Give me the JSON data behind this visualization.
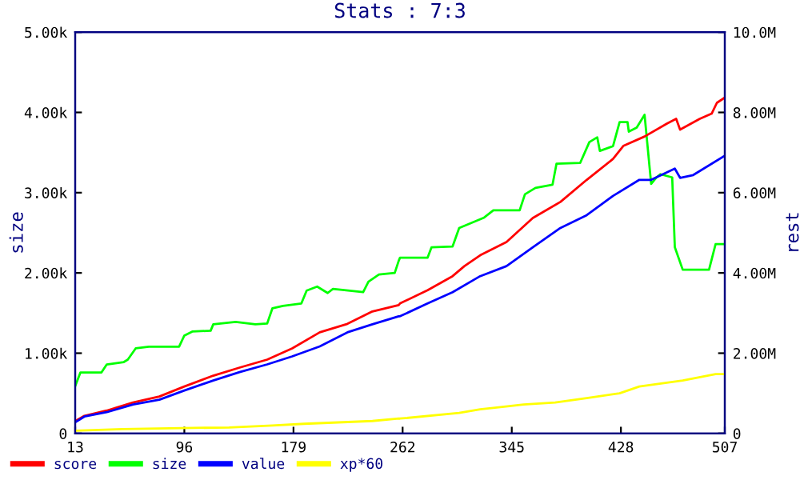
{
  "chart_data": {
    "type": "line",
    "title": "Stats : 7:3",
    "ylabel": "size",
    "y2label": "rest",
    "xlim": [
      13,
      507
    ],
    "xticks": [
      13,
      96,
      179,
      262,
      345,
      428,
      507
    ],
    "ylim": [
      0,
      5000
    ],
    "yticks": [
      0,
      {
        "value": 1000,
        "label": "1.00k"
      },
      {
        "value": 2000,
        "label": "2.00k"
      },
      {
        "value": 3000,
        "label": "3.00k"
      },
      {
        "value": 4000,
        "label": "4.00k"
      },
      {
        "value": 5000,
        "label": "5.00k"
      }
    ],
    "y2lim": [
      0,
      10000000
    ],
    "y2ticks": [
      0,
      {
        "value": 2000000,
        "label": "2.00M"
      },
      {
        "value": 4000000,
        "label": "4.00M"
      },
      {
        "value": 6000000,
        "label": "6.00M"
      },
      {
        "value": 8000000,
        "label": "8.00M"
      },
      {
        "value": 10000000,
        "label": "10.0M"
      }
    ],
    "legend": "bottom",
    "grid": false,
    "series": [
      {
        "name": "score",
        "color": "#ff0000",
        "axis": "y2",
        "x": [
          13,
          20,
          37,
          57,
          77,
          96,
          118,
          138,
          159,
          178,
          199,
          220,
          239,
          259,
          260,
          281,
          300,
          309,
          321,
          341,
          361,
          382,
          402,
          422,
          430,
          446,
          463,
          470,
          473,
          488,
          497,
          501,
          507
        ],
        "values": [
          310000,
          440000,
          570000,
          770000,
          920000,
          1170000,
          1440000,
          1640000,
          1840000,
          2120000,
          2520000,
          2730000,
          3040000,
          3200000,
          3240000,
          3570000,
          3920000,
          4170000,
          4440000,
          4770000,
          5370000,
          5770000,
          6320000,
          6840000,
          7170000,
          7400000,
          7720000,
          7840000,
          7570000,
          7840000,
          7970000,
          8240000,
          8370000
        ]
      },
      {
        "name": "size",
        "color": "#00ff00",
        "x": [
          13,
          17,
          33,
          37,
          50,
          53,
          59,
          69,
          92,
          96,
          102,
          116,
          118,
          135,
          150,
          159,
          163,
          171,
          185,
          189,
          197,
          205,
          209,
          232,
          236,
          244,
          256,
          259,
          260,
          281,
          284,
          300,
          305,
          324,
          331,
          351,
          355,
          363,
          376,
          379,
          397,
          404,
          410,
          412,
          422,
          427,
          433,
          434,
          440,
          446,
          451,
          455,
          458,
          467,
          469,
          475,
          495,
          500,
          507
        ],
        "values": [
          590,
          760,
          760,
          860,
          890,
          920,
          1060,
          1080,
          1080,
          1220,
          1270,
          1280,
          1360,
          1390,
          1360,
          1370,
          1560,
          1590,
          1620,
          1780,
          1830,
          1750,
          1800,
          1760,
          1890,
          1980,
          2000,
          2150,
          2190,
          2190,
          2320,
          2330,
          2560,
          2690,
          2780,
          2780,
          2980,
          3060,
          3100,
          3360,
          3370,
          3630,
          3690,
          3520,
          3580,
          3880,
          3880,
          3760,
          3810,
          3970,
          3110,
          3190,
          3230,
          3190,
          2320,
          2040,
          2040,
          2360,
          2360
        ]
      },
      {
        "name": "value",
        "color": "#0000ff",
        "axis": "y2",
        "x": [
          13,
          20,
          37,
          57,
          77,
          96,
          118,
          138,
          159,
          178,
          199,
          220,
          239,
          259,
          260,
          281,
          300,
          321,
          341,
          361,
          382,
          402,
          422,
          442,
          451,
          469,
          473,
          483,
          507
        ],
        "values": [
          280000,
          420000,
          530000,
          720000,
          840000,
          1070000,
          1320000,
          1530000,
          1720000,
          1920000,
          2170000,
          2520000,
          2720000,
          2920000,
          2920000,
          3240000,
          3520000,
          3920000,
          4170000,
          4640000,
          5120000,
          5440000,
          5920000,
          6320000,
          6320000,
          6600000,
          6370000,
          6440000,
          6920000
        ]
      },
      {
        "name": "xp*60",
        "color": "#ffff00",
        "axis": "y2",
        "x": [
          13,
          49,
          130,
          163,
          187,
          239,
          259,
          260,
          305,
          321,
          354,
          378,
          402,
          427,
          442,
          475,
          500,
          507
        ],
        "values": [
          70000,
          110000,
          150000,
          200000,
          240000,
          310000,
          370000,
          370000,
          510000,
          600000,
          720000,
          770000,
          880000,
          1000000,
          1170000,
          1320000,
          1480000,
          1480000
        ]
      }
    ]
  }
}
